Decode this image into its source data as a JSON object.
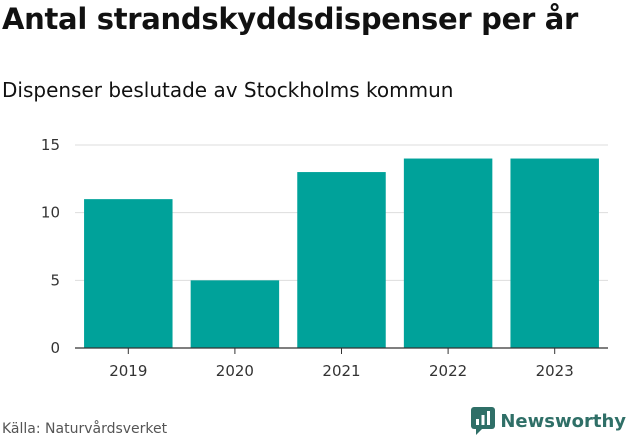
{
  "header": {
    "title": "Antal strandskyddsdispenser per år",
    "subtitle": "Dispenser beslutade av Stockholms kommun"
  },
  "footer": {
    "source": "Källa: Naturvårdsverket",
    "brand": "Newsworthy"
  },
  "colors": {
    "bar": "#00a29a",
    "grid": "#dddddd",
    "axis": "#333333",
    "brand": "#2f6f67"
  },
  "chart_data": {
    "type": "bar",
    "title": "Antal strandskyddsdispenser per år",
    "subtitle": "Dispenser beslutade av Stockholms kommun",
    "categories": [
      "2019",
      "2020",
      "2021",
      "2022",
      "2023"
    ],
    "values": [
      11,
      5,
      13,
      14,
      14
    ],
    "ylim": [
      0,
      15
    ],
    "yticks": [
      0,
      5,
      10,
      15
    ],
    "xlabel": "",
    "ylabel": "",
    "grid": true,
    "legend": "none"
  }
}
